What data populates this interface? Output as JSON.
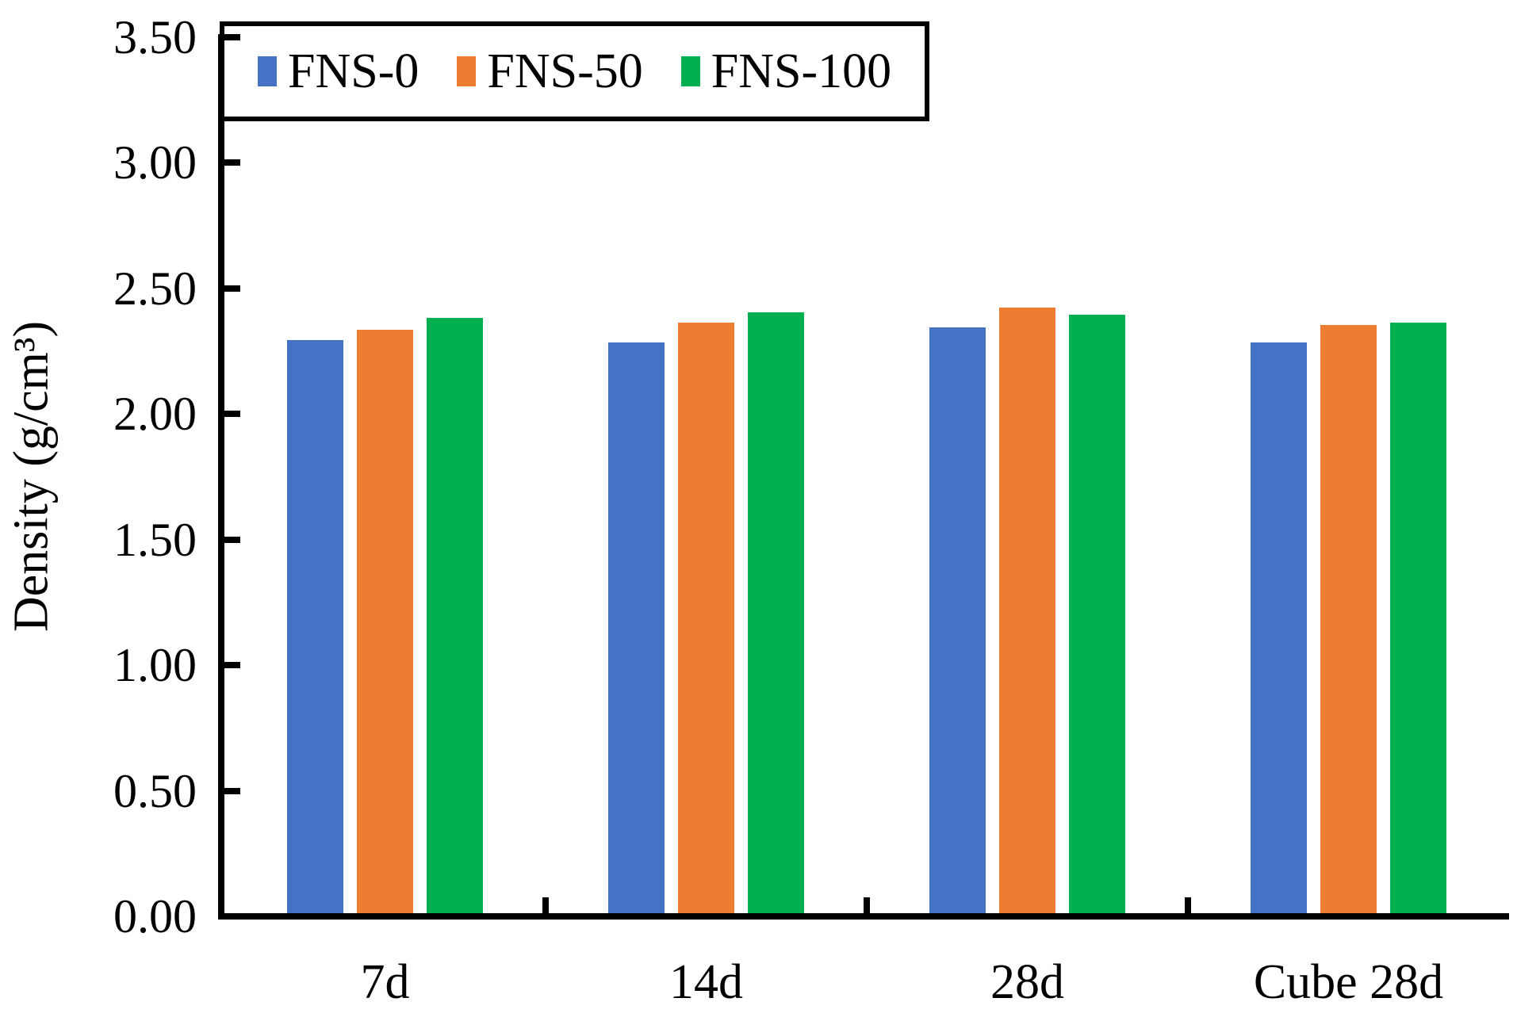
{
  "chart_data": {
    "type": "bar",
    "title": "",
    "categories": [
      "7d",
      "14d",
      "28d",
      "Cube 28d"
    ],
    "series": [
      {
        "name": "FNS-0",
        "color": "#4472C4",
        "values": [
          2.29,
          2.28,
          2.34,
          2.28
        ]
      },
      {
        "name": "FNS-50",
        "color": "#ED7D31",
        "values": [
          2.33,
          2.36,
          2.42,
          2.35
        ]
      },
      {
        "name": "FNS-100",
        "color": "#00B050",
        "values": [
          2.38,
          2.4,
          2.39,
          2.36
        ]
      }
    ],
    "xlabel": "",
    "ylabel": "Density (g/cm³)",
    "ylim": [
      0.0,
      3.5
    ],
    "ytick_step": 0.5,
    "ytick_labels": [
      "0.00",
      "0.50",
      "1.00",
      "1.50",
      "2.00",
      "2.50",
      "3.00",
      "3.50"
    ],
    "legend_position": "top-left-inside",
    "grid": false,
    "axis_color": "#000000",
    "background_color": "#FFFFFF"
  }
}
